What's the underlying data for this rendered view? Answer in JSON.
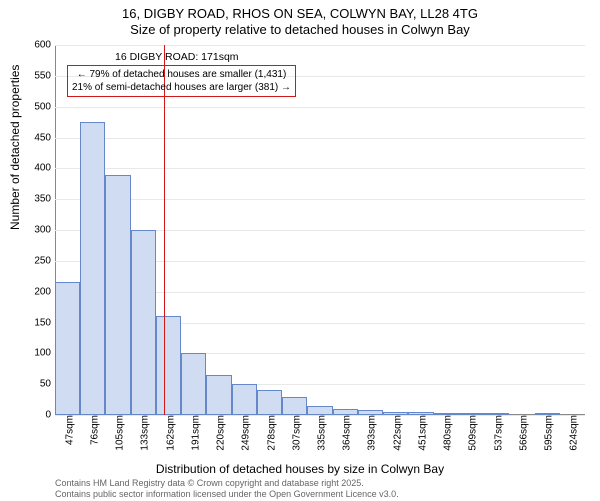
{
  "title": {
    "line1": "16, DIGBY ROAD, RHOS ON SEA, COLWYN BAY, LL28 4TG",
    "line2": "Size of property relative to detached houses in Colwyn Bay"
  },
  "chart": {
    "type": "histogram",
    "ylabel": "Number of detached properties",
    "xlabel": "Distribution of detached houses by size in Colwyn Bay",
    "ylabel_fontsize": 12,
    "xlabel_fontsize": 12,
    "ylim": [
      0,
      600
    ],
    "ytick_step": 50,
    "yticks": [
      0,
      50,
      100,
      150,
      200,
      250,
      300,
      350,
      400,
      450,
      500,
      550,
      600
    ],
    "xticks": [
      "47sqm",
      "76sqm",
      "105sqm",
      "133sqm",
      "162sqm",
      "191sqm",
      "220sqm",
      "249sqm",
      "278sqm",
      "307sqm",
      "335sqm",
      "364sqm",
      "393sqm",
      "422sqm",
      "451sqm",
      "480sqm",
      "509sqm",
      "537sqm",
      "566sqm",
      "595sqm",
      "624sqm"
    ],
    "values": [
      215,
      475,
      390,
      300,
      160,
      100,
      65,
      50,
      40,
      30,
      15,
      10,
      8,
      5,
      5,
      3,
      2,
      2,
      0,
      2,
      0
    ],
    "bar_fill": "#cfdcf2",
    "bar_stroke": "#6488c9",
    "grid_color": "#e8e8e8",
    "axis_color": "#888888",
    "background": "#ffffff",
    "highlight": {
      "x_index": 4.3,
      "line_color": "#d01818",
      "title": "16 DIGBY ROAD: 171sqm",
      "box_line1": "← 79% of detached houses are smaller (1,431)",
      "box_line2": "21% of semi-detached houses are larger (381) →",
      "box_border": "#d01818"
    }
  },
  "license": {
    "line1": "Contains HM Land Registry data © Crown copyright and database right 2025.",
    "line2": "Contains public sector information licensed under the Open Government Licence v3.0."
  }
}
